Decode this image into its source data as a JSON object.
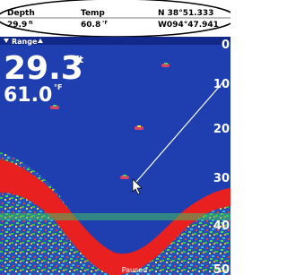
{
  "header": {
    "depth_label": "Depth",
    "depth_value": "29.9",
    "depth_unit": "ft",
    "temp_label": "Temp",
    "temp_value": "60.8",
    "temp_unit": "°F",
    "lat": "N 38°51.333",
    "lon": "W094°47.941"
  },
  "sonar": {
    "range_label": "Range",
    "depth": "29.3",
    "depth_unit": "ft",
    "temp": "61.0",
    "temp_unit": "°F",
    "scale": [
      "0",
      "10",
      "20",
      "30",
      "40",
      "50"
    ],
    "status": "Paused"
  }
}
